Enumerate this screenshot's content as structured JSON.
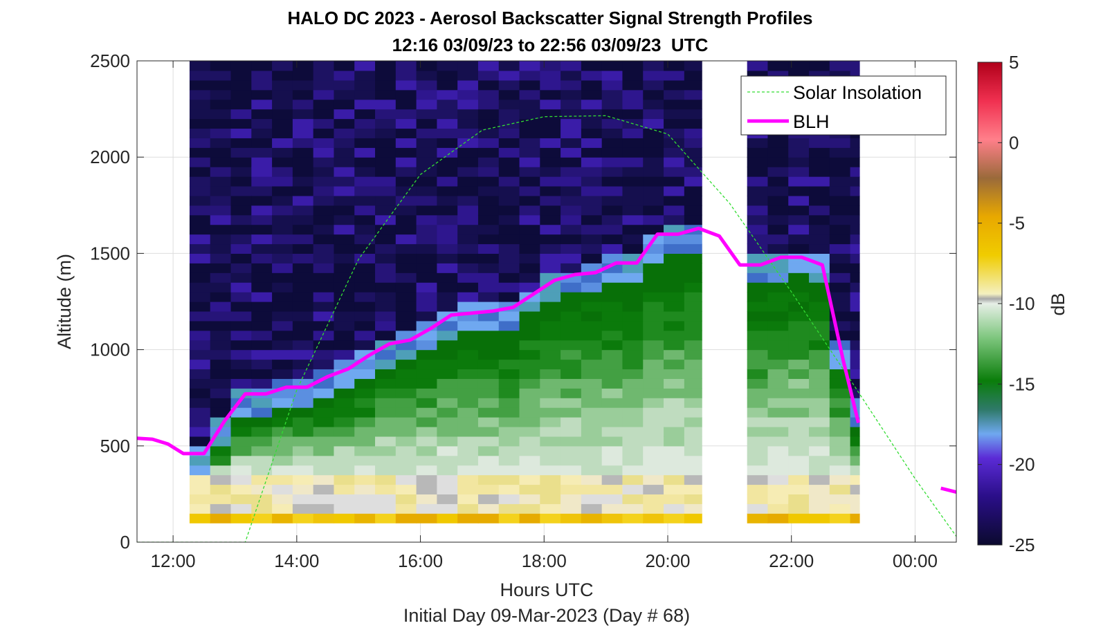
{
  "chart_data": {
    "type": "heatmap",
    "title": "HALO DC 2023 - Aerosol Backscatter Signal Strength Profiles",
    "subtitle": "12:16 03/09/23 to 22:56 03/09/23  UTC",
    "xlabel": "Hours UTC",
    "ylabel": "Altitude (m)",
    "footnote": "Initial Day 09-Mar-2023 (Day # 68)",
    "xlim": [
      "11:25",
      "00:40"
    ],
    "ylim": [
      0,
      2500
    ],
    "x_ticks": [
      "12:00",
      "14:00",
      "16:00",
      "18:00",
      "20:00",
      "22:00",
      "00:00"
    ],
    "y_ticks": [
      "0",
      "500",
      "1000",
      "1500",
      "2000",
      "2500"
    ],
    "colorbar": {
      "label": "dB",
      "range": [
        -25,
        5
      ],
      "ticks": [
        "5",
        "0",
        "-5",
        "-10",
        "-15",
        "-20",
        "-25"
      ]
    },
    "grid": true,
    "legend_position": "top-right",
    "heatmap_time_ranges_utc": [
      [
        "12:16",
        "20:33"
      ],
      [
        "21:17",
        "23:06"
      ]
    ],
    "heatmap_altitude_range_m": [
      100,
      2500
    ],
    "series": [
      {
        "name": "Solar Insolation",
        "style": "dashed",
        "color": "#33dd33",
        "points": [
          [
            "11:25",
            0
          ],
          [
            "13:10",
            0
          ],
          [
            "14:00",
            790
          ],
          [
            "15:00",
            1470
          ],
          [
            "16:00",
            1910
          ],
          [
            "17:00",
            2140
          ],
          [
            "18:00",
            2210
          ],
          [
            "19:00",
            2215
          ],
          [
            "20:00",
            2120
          ],
          [
            "21:00",
            1760
          ],
          [
            "22:00",
            1300
          ],
          [
            "23:00",
            820
          ],
          [
            "00:00",
            330
          ],
          [
            "00:40",
            30
          ]
        ]
      },
      {
        "name": "BLH",
        "style": "solid",
        "color": "#ff00ff",
        "segments": [
          [
            [
              "11:25",
              540
            ],
            [
              "11:40",
              535
            ],
            [
              "11:55",
              510
            ],
            [
              "12:10",
              460
            ],
            [
              "12:30",
              460
            ],
            [
              "12:50",
              630
            ],
            [
              "13:10",
              770
            ],
            [
              "13:30",
              770
            ],
            [
              "13:50",
              805
            ],
            [
              "14:10",
              805
            ],
            [
              "14:30",
              860
            ],
            [
              "14:50",
              900
            ],
            [
              "15:10",
              970
            ],
            [
              "15:30",
              1030
            ],
            [
              "15:50",
              1050
            ],
            [
              "16:10",
              1110
            ],
            [
              "16:30",
              1180
            ],
            [
              "16:50",
              1190
            ],
            [
              "17:10",
              1200
            ],
            [
              "17:30",
              1220
            ],
            [
              "17:50",
              1290
            ],
            [
              "18:10",
              1360
            ],
            [
              "18:30",
              1390
            ],
            [
              "18:50",
              1400
            ],
            [
              "19:10",
              1450
            ],
            [
              "19:30",
              1450
            ],
            [
              "19:50",
              1600
            ],
            [
              "20:10",
              1600
            ],
            [
              "20:30",
              1630
            ],
            [
              "20:50",
              1590
            ],
            [
              "21:10",
              1440
            ],
            [
              "21:30",
              1440
            ],
            [
              "21:50",
              1480
            ],
            [
              "22:10",
              1480
            ],
            [
              "22:30",
              1440
            ],
            [
              "22:50",
              950
            ],
            [
              "23:05",
              620
            ]
          ],
          [
            [
              "00:25",
              280
            ],
            [
              "00:40",
              260
            ]
          ]
        ]
      }
    ]
  }
}
